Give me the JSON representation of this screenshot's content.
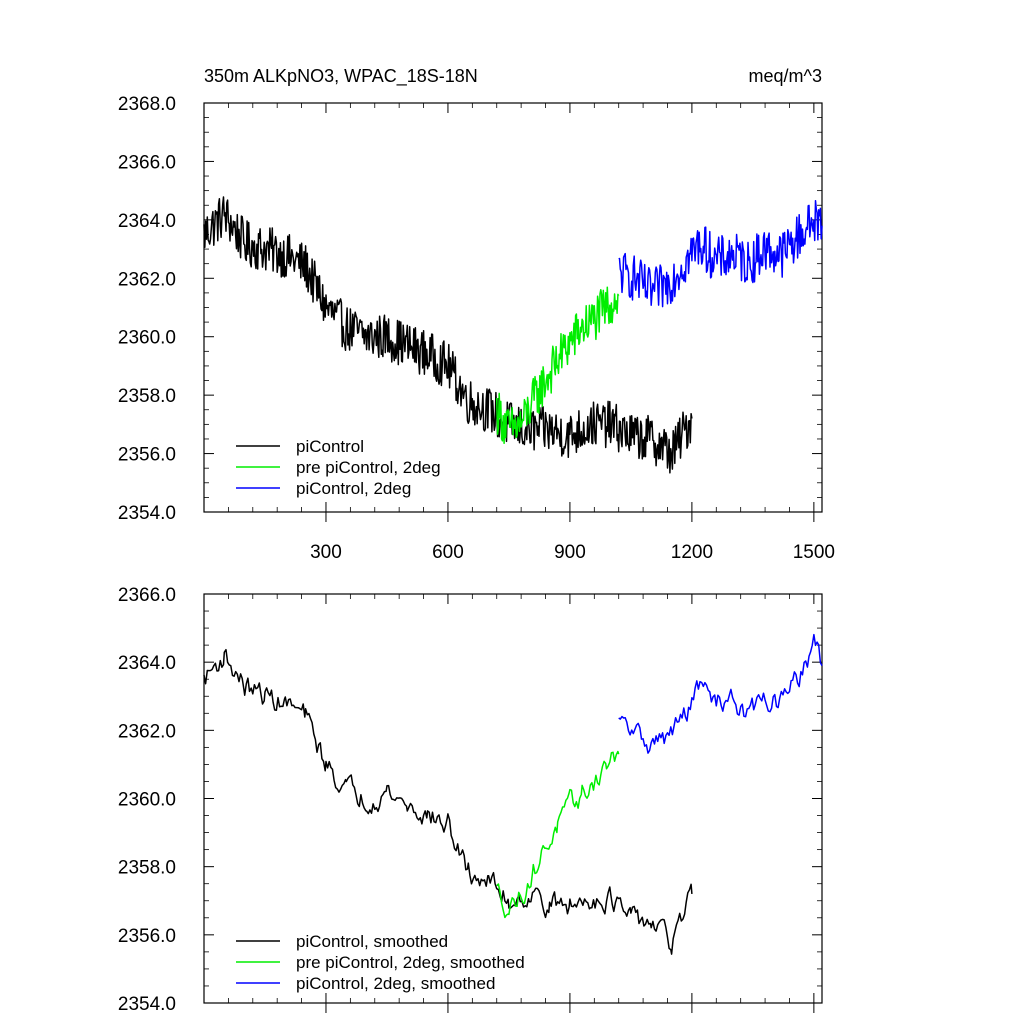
{
  "chart_data": [
    {
      "type": "line",
      "title_left": "350m ALKpNO3, WPAC_18S-18N",
      "title_right": "meq/m^3",
      "xlim": [
        0,
        1520
      ],
      "ylim": [
        2354,
        2368
      ],
      "yticks": [
        "2354.0",
        "2356.0",
        "2358.0",
        "2360.0",
        "2362.0",
        "2364.0",
        "2366.0",
        "2368.0"
      ],
      "xticks": [
        "300",
        "600",
        "900",
        "1200",
        "1500"
      ],
      "xtick_values": [
        300,
        600,
        900,
        1200,
        1500
      ],
      "legend": "bottom-left",
      "series": [
        {
          "name": "piControl",
          "color": "#000000",
          "x": [
            0,
            50,
            100,
            150,
            200,
            250,
            300,
            350,
            400,
            450,
            500,
            550,
            600,
            650,
            700,
            750,
            800,
            850,
            900,
            950,
            1000,
            1050,
            1100,
            1150,
            1200
          ],
          "y": [
            2363.5,
            2364.2,
            2363.2,
            2363.0,
            2362.8,
            2362.4,
            2361.0,
            2360.3,
            2360.0,
            2360.0,
            2359.7,
            2359.4,
            2359.0,
            2357.8,
            2357.5,
            2357.0,
            2356.8,
            2356.8,
            2356.6,
            2357.0,
            2357.0,
            2356.6,
            2356.5,
            2356.0,
            2357.2
          ]
        },
        {
          "name": "pre piControl, 2deg",
          "color": "#00ee00",
          "x": [
            720,
            750,
            780,
            810,
            840,
            870,
            900,
            930,
            960,
            990,
            1020
          ],
          "y": [
            2357.5,
            2356.8,
            2357.0,
            2357.8,
            2358.5,
            2359.2,
            2359.8,
            2360.3,
            2360.6,
            2361.0,
            2361.4
          ]
        },
        {
          "name": "piControl, 2deg",
          "color": "#0000ff",
          "x": [
            1020,
            1060,
            1100,
            1140,
            1180,
            1220,
            1260,
            1300,
            1340,
            1380,
            1420,
            1460,
            1500,
            1520
          ],
          "y": [
            2362.2,
            2362.0,
            2361.5,
            2361.8,
            2362.5,
            2363.2,
            2362.6,
            2362.8,
            2362.5,
            2363.0,
            2362.8,
            2363.4,
            2364.0,
            2363.8
          ]
        }
      ]
    },
    {
      "type": "line",
      "xlim": [
        0,
        1520
      ],
      "ylim": [
        2354,
        2366
      ],
      "yticks": [
        "2354.0",
        "2356.0",
        "2358.0",
        "2360.0",
        "2362.0",
        "2364.0",
        "2366.0"
      ],
      "legend": "bottom-left",
      "series": [
        {
          "name": "piControl, smoothed",
          "color": "#000000",
          "x": [
            0,
            50,
            100,
            150,
            200,
            250,
            300,
            350,
            400,
            450,
            500,
            550,
            600,
            650,
            700,
            750,
            800,
            850,
            900,
            950,
            1000,
            1050,
            1100,
            1150,
            1200
          ],
          "y": [
            2363.5,
            2364.2,
            2363.3,
            2363.0,
            2362.8,
            2362.4,
            2361.0,
            2360.3,
            2360.0,
            2360.2,
            2359.8,
            2359.5,
            2359.2,
            2357.8,
            2357.6,
            2357.0,
            2357.2,
            2356.9,
            2356.8,
            2357.1,
            2357.1,
            2356.4,
            2356.4,
            2355.7,
            2357.2
          ]
        },
        {
          "name": "pre piControl, 2deg, smoothed",
          "color": "#00ee00",
          "x": [
            720,
            750,
            780,
            810,
            840,
            870,
            900,
            930,
            960,
            990,
            1020
          ],
          "y": [
            2357.3,
            2356.8,
            2357.2,
            2357.8,
            2358.6,
            2359.2,
            2359.7,
            2360.1,
            2360.5,
            2361.0,
            2361.3
          ]
        },
        {
          "name": "piControl, 2deg, smoothed",
          "color": "#0000ff",
          "x": [
            1020,
            1060,
            1100,
            1140,
            1180,
            1220,
            1260,
            1300,
            1340,
            1380,
            1420,
            1460,
            1500,
            1520
          ],
          "y": [
            2362.2,
            2361.9,
            2361.6,
            2361.8,
            2362.4,
            2363.3,
            2362.8,
            2363.0,
            2362.4,
            2363.0,
            2362.8,
            2363.5,
            2364.5,
            2363.9
          ]
        }
      ]
    }
  ]
}
